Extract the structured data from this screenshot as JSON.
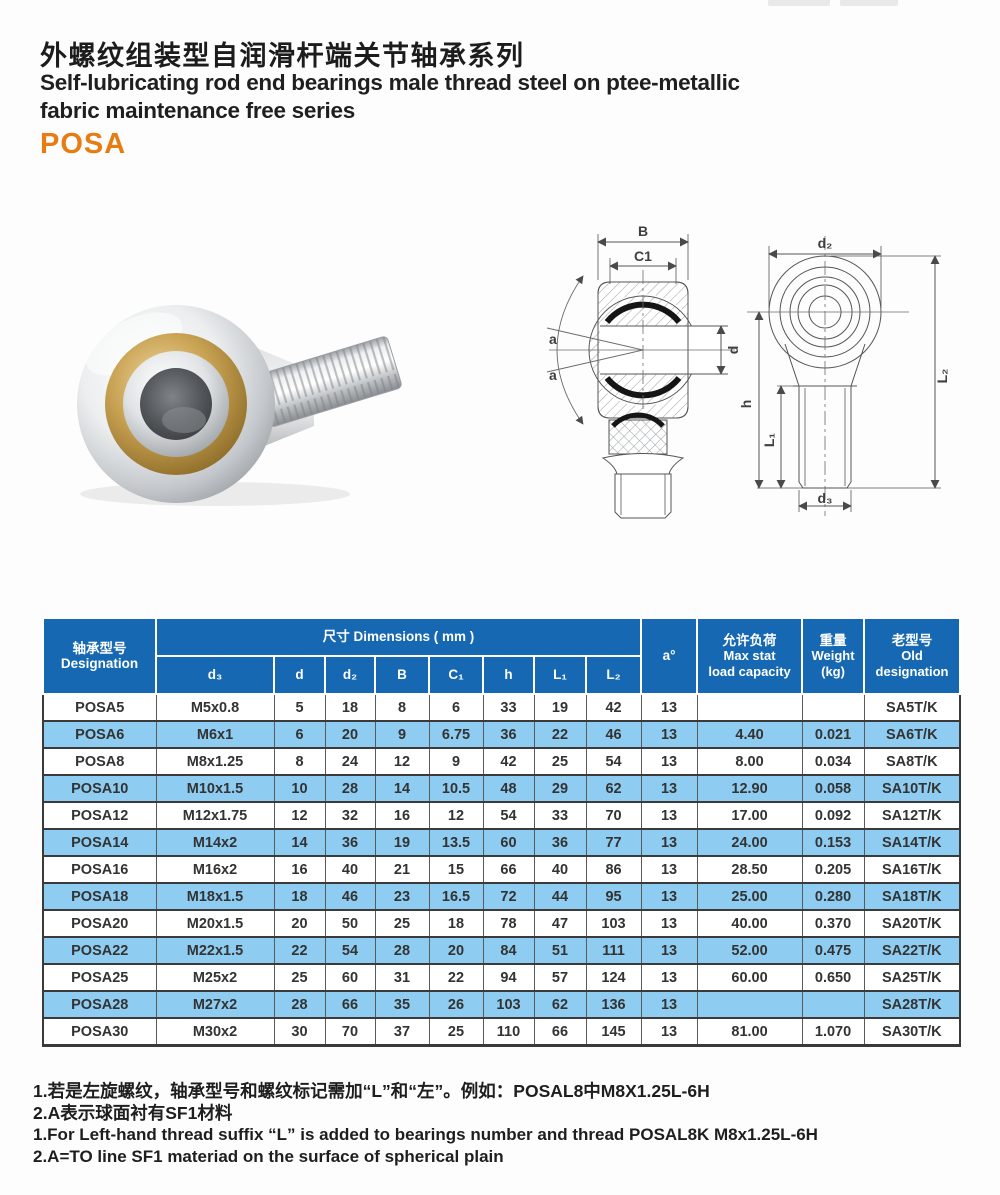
{
  "header": {
    "title_zh": "外螺纹组装型自润滑杆端关节轴承系列",
    "title_en_1": "Self-lubricating rod end bearings male thread steel on ptee-metallic",
    "title_en_2": "fabric maintenance free series",
    "series_code": "POSA"
  },
  "colors": {
    "accent_orange": "#e87c12",
    "header_blue": "#1568b1",
    "stripe_blue": "#8ecdf1"
  },
  "drawing": {
    "side_view_labels": {
      "B": "B",
      "C1": "C1",
      "a_upper": "a",
      "a_lower": "a",
      "d": "d"
    },
    "front_view_labels": {
      "d2": "d₂",
      "h": "h",
      "L1": "L₁",
      "L2": "L₂",
      "d3": "d₃"
    }
  },
  "table": {
    "header": {
      "designation_zh": "轴承型号",
      "designation_en": "Designation",
      "dimensions_group": "尺寸  Dimensions ( mm )",
      "dim_cols": [
        "d₃",
        "d",
        "d₂",
        "B",
        "C₁",
        "h",
        "L₁",
        "L₂"
      ],
      "angle": "a°",
      "load_zh": "允许负荷",
      "load_en_1": "Max stat",
      "load_en_2": "load capacity",
      "weight_zh": "重量",
      "weight_en": "Weight",
      "weight_unit": "(kg)",
      "old_zh": "老型号",
      "old_en_1": "Old",
      "old_en_2": "designation"
    },
    "rows": [
      {
        "model": "POSA5",
        "d3": "M5x0.8",
        "d": "5",
        "d2": "18",
        "B": "8",
        "C1": "6",
        "h": "33",
        "L1": "19",
        "L2": "42",
        "a": "13",
        "load": "",
        "weight": "",
        "old": "SA5T/K",
        "highlight": false
      },
      {
        "model": "POSA6",
        "d3": "M6x1",
        "d": "6",
        "d2": "20",
        "B": "9",
        "C1": "6.75",
        "h": "36",
        "L1": "22",
        "L2": "46",
        "a": "13",
        "load": "4.40",
        "weight": "0.021",
        "old": "SA6T/K",
        "highlight": true
      },
      {
        "model": "POSA8",
        "d3": "M8x1.25",
        "d": "8",
        "d2": "24",
        "B": "12",
        "C1": "9",
        "h": "42",
        "L1": "25",
        "L2": "54",
        "a": "13",
        "load": "8.00",
        "weight": "0.034",
        "old": "SA8T/K",
        "highlight": false
      },
      {
        "model": "POSA10",
        "d3": "M10x1.5",
        "d": "10",
        "d2": "28",
        "B": "14",
        "C1": "10.5",
        "h": "48",
        "L1": "29",
        "L2": "62",
        "a": "13",
        "load": "12.90",
        "weight": "0.058",
        "old": "SA10T/K",
        "highlight": true
      },
      {
        "model": "POSA12",
        "d3": "M12x1.75",
        "d": "12",
        "d2": "32",
        "B": "16",
        "C1": "12",
        "h": "54",
        "L1": "33",
        "L2": "70",
        "a": "13",
        "load": "17.00",
        "weight": "0.092",
        "old": "SA12T/K",
        "highlight": false
      },
      {
        "model": "POSA14",
        "d3": "M14x2",
        "d": "14",
        "d2": "36",
        "B": "19",
        "C1": "13.5",
        "h": "60",
        "L1": "36",
        "L2": "77",
        "a": "13",
        "load": "24.00",
        "weight": "0.153",
        "old": "SA14T/K",
        "highlight": true
      },
      {
        "model": "POSA16",
        "d3": "M16x2",
        "d": "16",
        "d2": "40",
        "B": "21",
        "C1": "15",
        "h": "66",
        "L1": "40",
        "L2": "86",
        "a": "13",
        "load": "28.50",
        "weight": "0.205",
        "old": "SA16T/K",
        "highlight": false
      },
      {
        "model": "POSA18",
        "d3": "M18x1.5",
        "d": "18",
        "d2": "46",
        "B": "23",
        "C1": "16.5",
        "h": "72",
        "L1": "44",
        "L2": "95",
        "a": "13",
        "load": "25.00",
        "weight": "0.280",
        "old": "SA18T/K",
        "highlight": true
      },
      {
        "model": "POSA20",
        "d3": "M20x1.5",
        "d": "20",
        "d2": "50",
        "B": "25",
        "C1": "18",
        "h": "78",
        "L1": "47",
        "L2": "103",
        "a": "13",
        "load": "40.00",
        "weight": "0.370",
        "old": "SA20T/K",
        "highlight": false
      },
      {
        "model": "POSA22",
        "d3": "M22x1.5",
        "d": "22",
        "d2": "54",
        "B": "28",
        "C1": "20",
        "h": "84",
        "L1": "51",
        "L2": "111",
        "a": "13",
        "load": "52.00",
        "weight": "0.475",
        "old": "SA22T/K",
        "highlight": true
      },
      {
        "model": "POSA25",
        "d3": "M25x2",
        "d": "25",
        "d2": "60",
        "B": "31",
        "C1": "22",
        "h": "94",
        "L1": "57",
        "L2": "124",
        "a": "13",
        "load": "60.00",
        "weight": "0.650",
        "old": "SA25T/K",
        "highlight": false
      },
      {
        "model": "POSA28",
        "d3": "M27x2",
        "d": "28",
        "d2": "66",
        "B": "35",
        "C1": "26",
        "h": "103",
        "L1": "62",
        "L2": "136",
        "a": "13",
        "load": "",
        "weight": "",
        "old": "SA28T/K",
        "highlight": true
      },
      {
        "model": "POSA30",
        "d3": "M30x2",
        "d": "30",
        "d2": "70",
        "B": "37",
        "C1": "25",
        "h": "110",
        "L1": "66",
        "L2": "145",
        "a": "13",
        "load": "81.00",
        "weight": "1.070",
        "old": "SA30T/K",
        "highlight": false
      }
    ]
  },
  "notes": {
    "line1_zh": "1.若是左旋螺纹，轴承型号和螺纹标记需加“L”和“左”。例如：POSAL8中M8X1.25L-6H",
    "line2_zh": "2.A表示球面衬有SF1材料",
    "line3_en": "1.For Left-hand thread suffix “L” is added to bearings number and thread POSAL8K M8x1.25L-6H",
    "line4_en": "2.A=TO line SF1 materiad on the surface of spherical plain"
  }
}
